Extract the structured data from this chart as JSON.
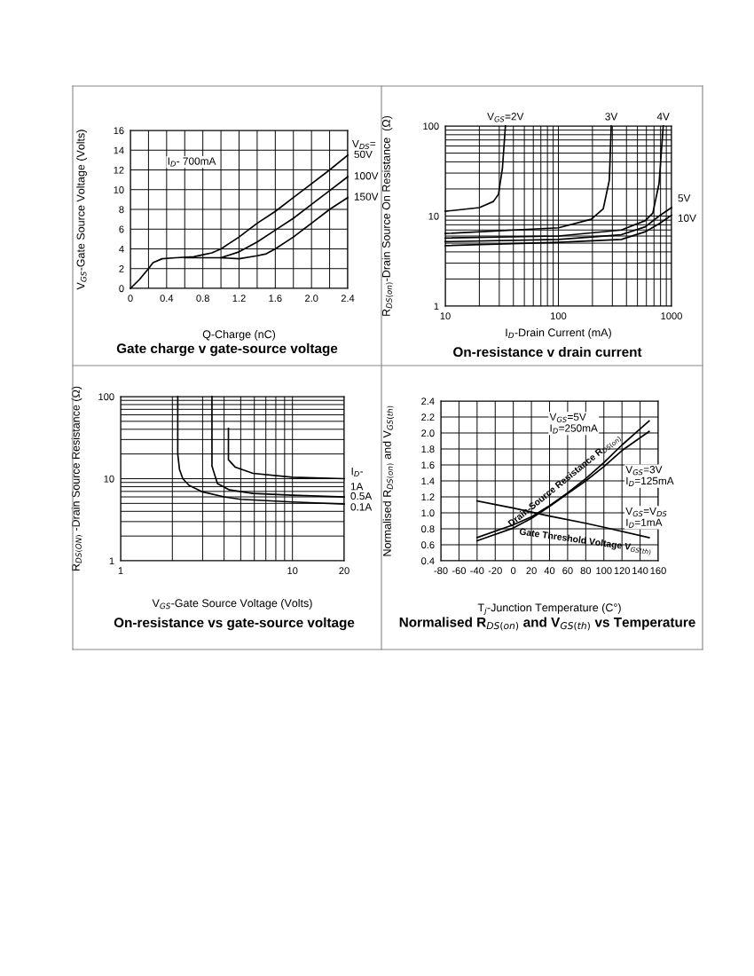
{
  "chart_data": [
    {
      "type": "line",
      "title": "Gate charge v gate-source voltage",
      "xlabel": "Q-Charge (nC)",
      "ylabel": "V$_{GS}$-Gate Source Voltage (Volts)",
      "annotations": [
        "I$_{D}$- 700mA",
        "V$_{DS}$="
      ],
      "xlim": [
        0,
        2.4
      ],
      "ylim": [
        0,
        16
      ],
      "xticks": [
        0,
        {
          "value": 0.2,
          "label": null
        },
        0.4,
        {
          "value": 0.6,
          "label": null
        },
        0.8,
        {
          "value": 1.0,
          "label": null
        },
        1.2,
        {
          "value": 1.4,
          "label": null
        },
        1.6,
        {
          "value": 1.8,
          "label": null
        },
        {
          "value": 2.0,
          "label": "2.0"
        },
        {
          "value": 2.2,
          "label": null
        },
        2.4
      ],
      "yticks": [
        0,
        2,
        4,
        6,
        8,
        10,
        12,
        14,
        16
      ],
      "grid": true,
      "series": [
        {
          "name": "50V",
          "color": "#000000",
          "x": [
            0,
            0.1,
            0.2,
            0.25,
            0.35,
            0.5,
            0.7,
            0.8,
            0.9,
            1.0,
            1.2,
            1.4,
            1.6,
            1.8,
            2.0,
            2.2,
            2.4
          ],
          "values": [
            0,
            0.9,
            2.0,
            2.6,
            3.0,
            3.1,
            3.2,
            3.4,
            3.6,
            4.0,
            5.2,
            6.6,
            7.8,
            9.2,
            10.6,
            12.0,
            13.5
          ]
        },
        {
          "name": "100V",
          "color": "#000000",
          "x": [
            0.6,
            1.0,
            1.2,
            1.4,
            1.6,
            1.8,
            2.0,
            2.2,
            2.4
          ],
          "values": [
            3.1,
            3.1,
            3.7,
            4.7,
            5.9,
            7.1,
            8.5,
            9.9,
            11.3
          ]
        },
        {
          "name": "150V",
          "color": "#000000",
          "x": [
            1.0,
            1.2,
            1.4,
            1.5,
            1.6,
            1.8,
            2.0,
            2.2,
            2.4
          ],
          "values": [
            3.1,
            3.0,
            3.3,
            3.5,
            4.0,
            5.2,
            6.6,
            8.0,
            9.2
          ]
        }
      ]
    },
    {
      "type": "line",
      "title": "On-resistance v drain current",
      "xlabel": "I$_{D}$-Drain Current (mA)",
      "ylabel": "R$_{DS(on)}$-Drain Source On Resistance  (Ω)",
      "log": "xy",
      "xlim": [
        10,
        1000
      ],
      "ylim": [
        1,
        100
      ],
      "xticks": [
        10,
        100,
        1000
      ],
      "yticks": [
        1,
        10,
        100
      ],
      "grid": true,
      "series": [
        {
          "name": "V$_{GS}$=2V",
          "color": "#000000",
          "x": [
            10,
            20,
            26.6,
            29.5,
            32,
            34
          ],
          "values": [
            11.3,
            12.4,
            14.5,
            17.4,
            34,
            100
          ]
        },
        {
          "name": "3V",
          "color": "#000000",
          "x": [
            10,
            100,
            195,
            249,
            282,
            293
          ],
          "values": [
            6.4,
            7.4,
            9.2,
            12,
            25,
            100
          ]
        },
        {
          "name": "4V",
          "color": "#000000",
          "x": [
            10,
            100,
            360,
            587,
            684,
            776,
            845
          ],
          "values": [
            5.7,
            6.0,
            7.0,
            8.9,
            10.8,
            23,
            100
          ]
        },
        {
          "name": "5V",
          "color": "#000000",
          "x": [
            10,
            100,
            360,
            587,
            776,
            1000
          ],
          "values": [
            5.2,
            5.5,
            6.2,
            7.6,
            10,
            12.4
          ]
        },
        {
          "name": "10V",
          "color": "#000000",
          "x": [
            10,
            100,
            360,
            587,
            776,
            1000
          ],
          "values": [
            4.7,
            5.1,
            5.5,
            6.7,
            8.2,
            10.2
          ]
        }
      ]
    },
    {
      "type": "line",
      "title": "On-resistance vs gate-source voltage",
      "xlabel": "V$_{GS}$-Gate Source Voltage (Volts)",
      "ylabel": "R$_{DS(ON)}$ -Drain Source Resistance (Ω)",
      "annotations": [
        "I$_{D}$-"
      ],
      "log": "xy",
      "xlim": [
        1,
        20
      ],
      "ylim": [
        1,
        100
      ],
      "xticks": [
        1,
        10,
        20
      ],
      "yticks": [
        1,
        10,
        100
      ],
      "grid": true,
      "series": [
        {
          "name": "1A",
          "color": "#000000",
          "x": [
            4.24,
            4.24,
            4.65,
            5.9,
            10,
            20
          ],
          "values": [
            41,
            17,
            13.8,
            11.6,
            10.4,
            10
          ]
        },
        {
          "name": "0.5A",
          "color": "#000000",
          "x": [
            3.4,
            3.4,
            3.66,
            4.3,
            5.9,
            10,
            20
          ],
          "values": [
            100,
            14.3,
            8.7,
            7.3,
            6.6,
            6.3,
            6.0
          ]
        },
        {
          "name": "0.1A",
          "color": "#000000",
          "x": [
            2.15,
            2.15,
            2.2,
            2.3,
            2.5,
            3,
            4,
            5,
            10,
            20
          ],
          "values": [
            100,
            20,
            13,
            10,
            8.3,
            6.9,
            6.0,
            5.6,
            5.2,
            4.9
          ]
        }
      ]
    },
    {
      "type": "line",
      "title": "Normalised R$_{DS(on)}$ and V$_{GS(th)}$ vs Temperature",
      "xlabel": "T$_{j}$-Junction Temperature (C°)",
      "ylabel": "Normalised R$_{DS(on)}$ and V$_{GS(th)}$",
      "annotations": [
        "Drain-Source Resistance R$_{DS(on)}$",
        "Gate Threshold Voltage V$_{GS(th)}$"
      ],
      "xlim": [
        -80,
        160
      ],
      "ylim": [
        0.4,
        2.4
      ],
      "xticks": [
        -80,
        -60,
        -40,
        -20,
        0,
        20,
        40,
        60,
        80,
        100,
        120,
        140,
        160
      ],
      "yticks": [
        0.4,
        0.6,
        0.8,
        {
          "value": 1.0,
          "label": "1.0"
        },
        1.2,
        1.4,
        1.6,
        1.8,
        {
          "value": 2.0,
          "label": "2.0"
        },
        2.2,
        2.4
      ],
      "grid": true,
      "series": [
        {
          "name": "V$_{GS}$=5V\nI$_{D}$=250mA",
          "color": "#000000",
          "x": [
            -40,
            0,
            20,
            40,
            60,
            80,
            100,
            120,
            150
          ],
          "values": [
            0.69,
            0.85,
            0.95,
            1.09,
            1.25,
            1.43,
            1.63,
            1.85,
            2.15
          ]
        },
        {
          "name": "V$_{GS}$=3V\nI$_{D}$=125mA",
          "color": "#000000",
          "x": [
            -40,
            0,
            20,
            40,
            60,
            80,
            100,
            120,
            150
          ],
          "values": [
            0.65,
            0.81,
            0.93,
            1.08,
            1.24,
            1.4,
            1.58,
            1.78,
            2.02
          ]
        },
        {
          "name": "V$_{GS}$=V$_{DS}$\nI$_{D}$=1mA",
          "color": "#000000",
          "x": [
            -40,
            0,
            40,
            80,
            100,
            150
          ],
          "values": [
            1.15,
            1.06,
            0.96,
            0.87,
            0.82,
            0.69
          ]
        }
      ]
    }
  ]
}
